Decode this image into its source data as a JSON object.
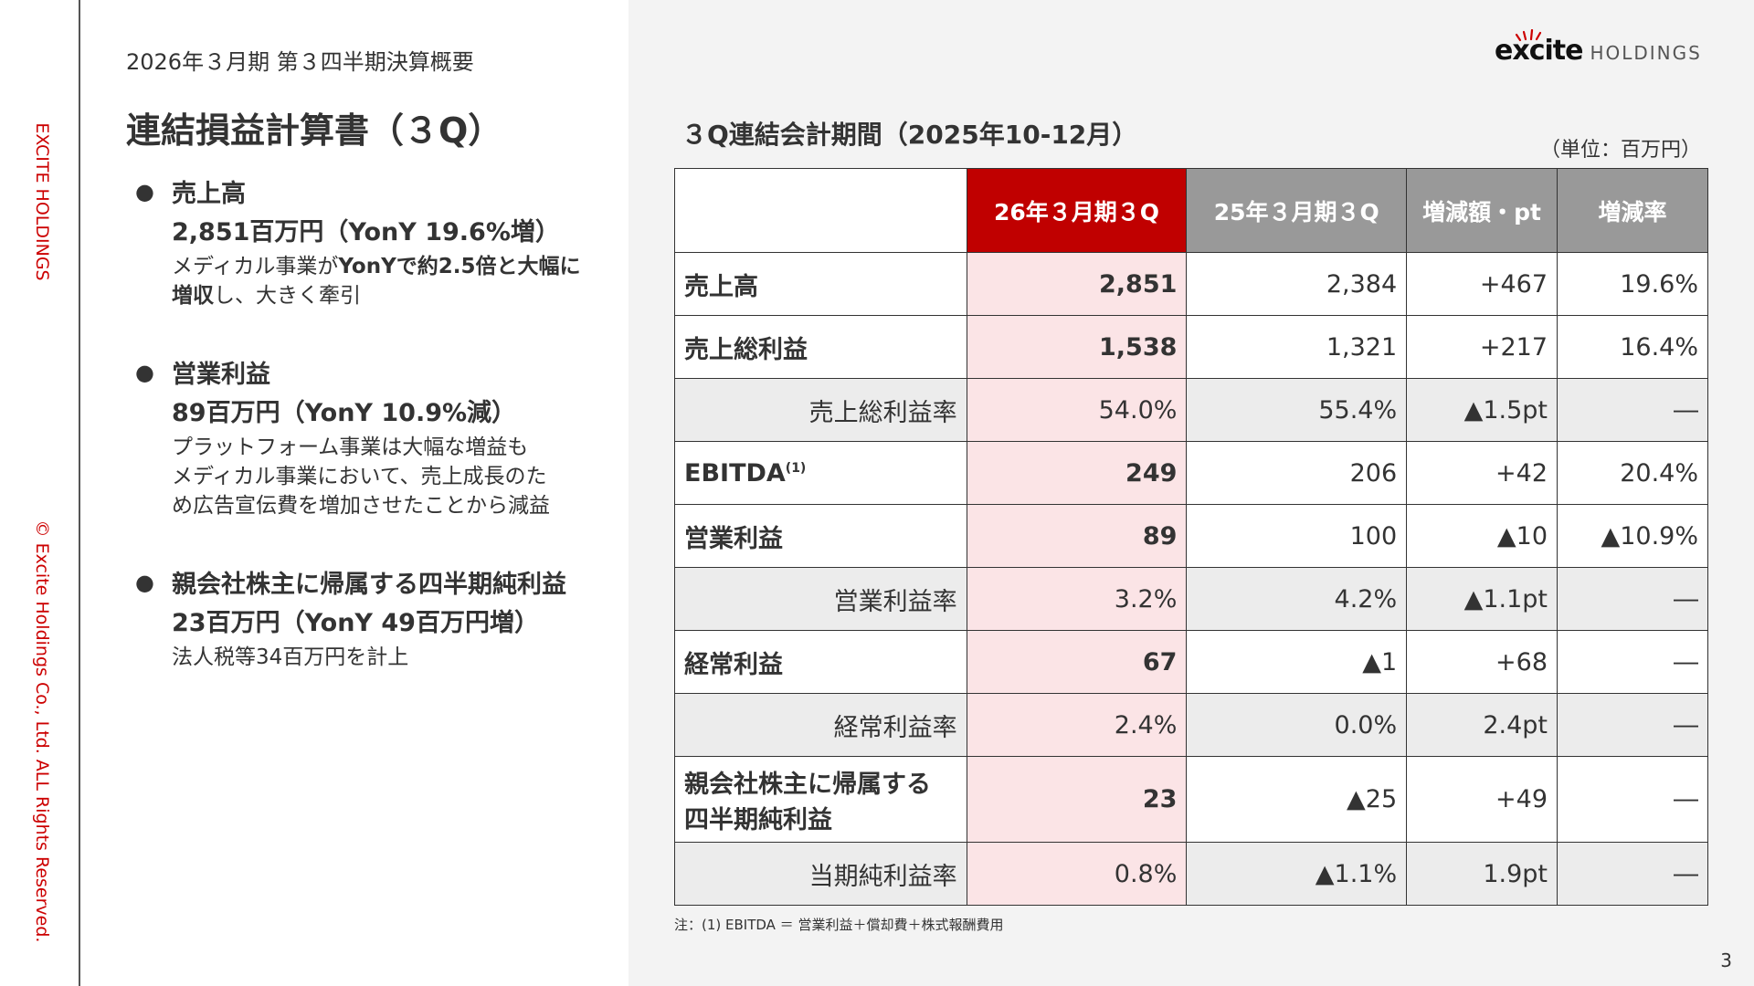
{
  "sidebar": {
    "brand": "EXCITE HOLDINGS",
    "copyright": "© Excite Holdings Co., Ltd. ALL Rights Reserved."
  },
  "header": {
    "subtitle": "2026年３月期 第３四半期決算概要",
    "title": "連結損益計算書（３Q）"
  },
  "logo": {
    "mark": "excite",
    "text": "HOLDINGS"
  },
  "bullets": [
    {
      "h1": "売上高",
      "h2": "2,851百万円（YonY 19.6%増）",
      "d1a": "メディカル事業が",
      "d1b": "YonYで約2.5倍と大幅に",
      "d2a": "増収",
      "d2b": "し、大きく牽引"
    },
    {
      "h1": "営業利益",
      "h2": "89百万円（YonY 10.9%減）",
      "d1": "プラットフォーム事業は大幅な増益も",
      "d2": "メディカル事業において、売上成長のた",
      "d3": "め広告宣伝費を増加させたことから減益"
    },
    {
      "h1": "親会社株主に帰属する四半期純利益",
      "h2": "23百万円（YonY 49百万円増）",
      "d1": "法人税等34百万円を計上"
    }
  ],
  "table": {
    "title": "３Q連結会計期間（2025年10-12月）",
    "unit": "（単位：百万円）",
    "headers": [
      "",
      "26年３月期３Q",
      "25年３月期３Q",
      "増減額・pt",
      "増減率"
    ],
    "rows": [
      {
        "label": "売上高",
        "cur": "2,851",
        "prev": "2,384",
        "diff": "+467",
        "rate": "19.6%"
      },
      {
        "label": "売上総利益",
        "cur": "1,538",
        "prev": "1,321",
        "diff": "+217",
        "rate": "16.4%"
      },
      {
        "label": "売上総利益率",
        "cur": "54.0%",
        "prev": "55.4%",
        "diff": "▲1.5pt",
        "rate": "―"
      },
      {
        "label": "EBITDA",
        "sup": "(1)",
        "cur": "249",
        "prev": "206",
        "diff": "+42",
        "rate": "20.4%"
      },
      {
        "label": "営業利益",
        "cur": "89",
        "prev": "100",
        "diff": "▲10",
        "rate": "▲10.9%"
      },
      {
        "label": "営業利益率",
        "cur": "3.2%",
        "prev": "4.2%",
        "diff": "▲1.1pt",
        "rate": "―"
      },
      {
        "label": "経常利益",
        "cur": "67",
        "prev": "▲1",
        "diff": "+68",
        "rate": "―"
      },
      {
        "label": "経常利益率",
        "cur": "2.4%",
        "prev": "0.0%",
        "diff": "2.4pt",
        "rate": "―"
      },
      {
        "label1": "親会社株主に帰属する",
        "label2": "四半期純利益",
        "cur": "23",
        "prev": "▲25",
        "diff": "+49",
        "rate": "―"
      },
      {
        "label": "当期純利益率",
        "cur": "0.8%",
        "prev": "▲1.1%",
        "diff": "1.9pt",
        "rate": "―"
      }
    ],
    "note": "注：(1) EBITDA ＝ 営業利益＋償却費＋株式報酬費用"
  },
  "page_number": "3",
  "colors": {
    "accent": "#c00000",
    "highlight": "#fbe4e6",
    "header_gray": "#999999",
    "sidebar_text": "#cc0000"
  }
}
